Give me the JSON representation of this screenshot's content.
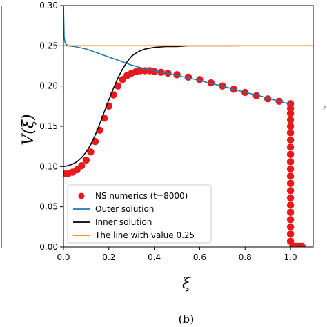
{
  "chart_data": {
    "type": "line",
    "xlabel": "ξ",
    "ylabel": "V(ξ)",
    "caption": "(b)",
    "xlim": [
      0.0,
      1.1
    ],
    "ylim": [
      0.0,
      0.3
    ],
    "grid": false,
    "legend_position": "bottom-left",
    "x_ticks": [
      "0.0",
      "0.2",
      "0.4",
      "0.6",
      "0.8",
      "1.0"
    ],
    "y_ticks": [
      "0.00",
      "0.05",
      "0.10",
      "0.15",
      "0.20",
      "0.25",
      "0.30"
    ],
    "x_tick_values": [
      0.0,
      0.2,
      0.4,
      0.6,
      0.8,
      1.0
    ],
    "y_tick_values": [
      0.0,
      0.05,
      0.1,
      0.15,
      0.2,
      0.25,
      0.3
    ],
    "crop_text": "ε",
    "series": [
      {
        "name": "NS numerics (t=8000)",
        "kind": "scatter",
        "color": "#e41a1c",
        "x": [
          0.0,
          0.02,
          0.04,
          0.06,
          0.08,
          0.1,
          0.12,
          0.14,
          0.16,
          0.18,
          0.2,
          0.22,
          0.24,
          0.26,
          0.28,
          0.3,
          0.32,
          0.34,
          0.36,
          0.38,
          0.4,
          0.43,
          0.46,
          0.5,
          0.55,
          0.6,
          0.65,
          0.7,
          0.75,
          0.8,
          0.85,
          0.9,
          0.95,
          1.0,
          1.0,
          1.0,
          1.0,
          1.0,
          1.0,
          1.0,
          1.0,
          1.0,
          1.0,
          1.0,
          1.0,
          1.0,
          1.0,
          1.0,
          1.0,
          1.0,
          1.0,
          1.0,
          1.0,
          1.0,
          1.01,
          1.02,
          1.03,
          1.04,
          1.05
        ],
        "y": [
          0.091,
          0.091,
          0.093,
          0.096,
          0.101,
          0.108,
          0.118,
          0.131,
          0.145,
          0.16,
          0.175,
          0.189,
          0.2,
          0.208,
          0.213,
          0.216,
          0.218,
          0.219,
          0.219,
          0.219,
          0.218,
          0.217,
          0.216,
          0.214,
          0.211,
          0.208,
          0.204,
          0.2,
          0.196,
          0.192,
          0.188,
          0.184,
          0.181,
          0.178,
          0.172,
          0.166,
          0.158,
          0.15,
          0.142,
          0.133,
          0.124,
          0.115,
          0.106,
          0.097,
          0.088,
          0.079,
          0.07,
          0.061,
          0.052,
          0.043,
          0.034,
          0.025,
          0.016,
          0.007,
          0.001,
          0.001,
          0.001,
          0.001,
          0.001
        ]
      },
      {
        "name": "Outer solution",
        "kind": "line",
        "color": "#1f77b4",
        "x": [
          0.0,
          0.003,
          0.006,
          0.01,
          0.02,
          0.05,
          0.1,
          0.15,
          0.2,
          0.25,
          0.3,
          0.35,
          0.4,
          0.45,
          0.5,
          0.55,
          0.6,
          0.65,
          0.7,
          0.75,
          0.8,
          0.85,
          0.9,
          0.95,
          1.0
        ],
        "y": [
          0.3,
          0.262,
          0.255,
          0.252,
          0.25,
          0.249,
          0.246,
          0.241,
          0.236,
          0.231,
          0.226,
          0.222,
          0.219,
          0.216,
          0.213,
          0.21,
          0.207,
          0.203,
          0.2,
          0.196,
          0.192,
          0.189,
          0.185,
          0.181,
          0.177
        ]
      },
      {
        "name": "Inner solution",
        "kind": "line",
        "color": "#000000",
        "x": [
          0.0,
          0.02,
          0.04,
          0.06,
          0.08,
          0.1,
          0.12,
          0.14,
          0.16,
          0.18,
          0.2,
          0.22,
          0.24,
          0.26,
          0.28,
          0.3,
          0.32,
          0.34,
          0.36,
          0.38,
          0.4,
          0.45,
          0.5,
          0.55,
          0.6,
          0.7,
          0.77
        ],
        "y": [
          0.1,
          0.101,
          0.103,
          0.106,
          0.111,
          0.118,
          0.127,
          0.139,
          0.153,
          0.168,
          0.183,
          0.197,
          0.21,
          0.221,
          0.23,
          0.237,
          0.241,
          0.244,
          0.246,
          0.247,
          0.248,
          0.249,
          0.249,
          0.25,
          0.25,
          0.25,
          0.25
        ]
      },
      {
        "name": "The line with value 0.25",
        "kind": "line",
        "color": "#ff7f0e",
        "x": [
          0.0,
          1.1
        ],
        "y": [
          0.25,
          0.25
        ]
      }
    ]
  }
}
